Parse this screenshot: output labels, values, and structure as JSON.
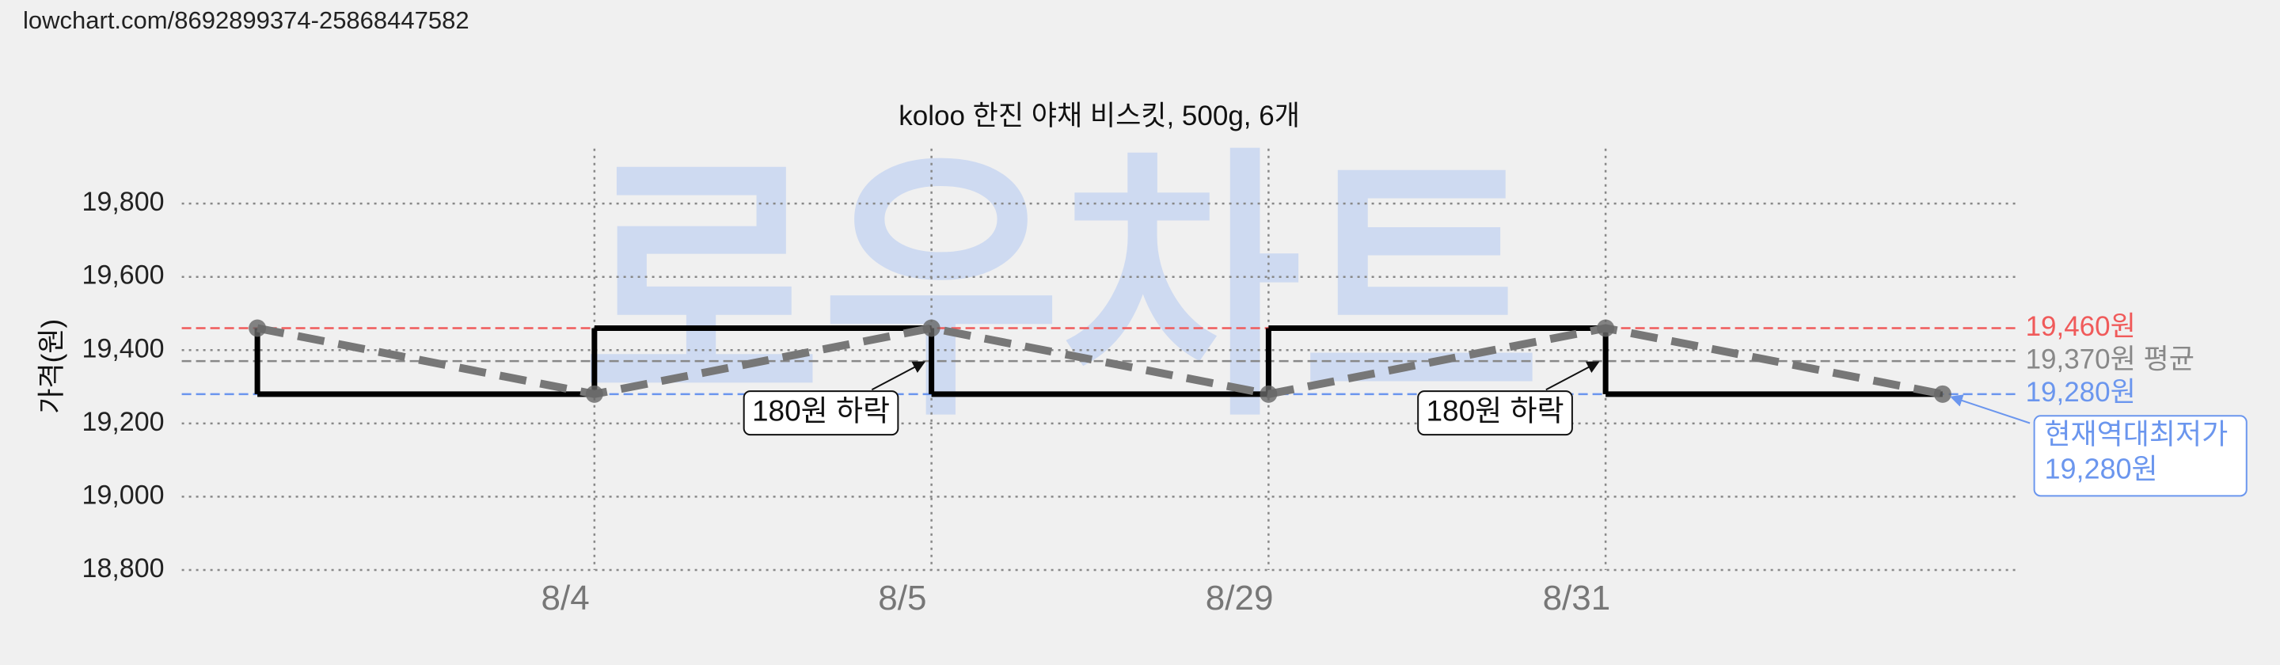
{
  "url": "lowchart.com/8692899374-25868447582",
  "chart_data": {
    "type": "line",
    "title": "koloo 한진 야채 비스킷, 500g, 6개",
    "ylabel": "가격(원)",
    "watermark": "로우차트",
    "categories": [
      null,
      "8/4",
      "8/5",
      "8/29",
      "8/31",
      null
    ],
    "values": [
      19460,
      19280,
      19460,
      19280,
      19460,
      19280
    ],
    "color": "#777777",
    "step_color": "#000000",
    "ylim": [
      18800,
      19950
    ],
    "yticks": [
      {
        "value": 18800,
        "label": "18,800"
      },
      {
        "value": 19000,
        "label": "19,000"
      },
      {
        "value": 19200,
        "label": "19,200"
      },
      {
        "value": 19400,
        "label": "19,400"
      },
      {
        "value": 19600,
        "label": "19,600"
      },
      {
        "value": 19800,
        "label": "19,800"
      }
    ],
    "grid": true,
    "reference_lines": [
      {
        "value": 19460,
        "label": "19,460원",
        "color": "#f05a5a"
      },
      {
        "value": 19370,
        "label": "19,370원 평균",
        "color": "#888888"
      },
      {
        "value": 19280,
        "label": "19,280원",
        "color": "#6b96ee"
      }
    ],
    "annotations": [
      {
        "text": "180원 하락",
        "category": "8/5"
      },
      {
        "text": "180원 하락",
        "category": "8/31"
      },
      {
        "lines": [
          "현재역대최저가",
          "19,280원"
        ],
        "color": "#6b96ee"
      }
    ]
  }
}
